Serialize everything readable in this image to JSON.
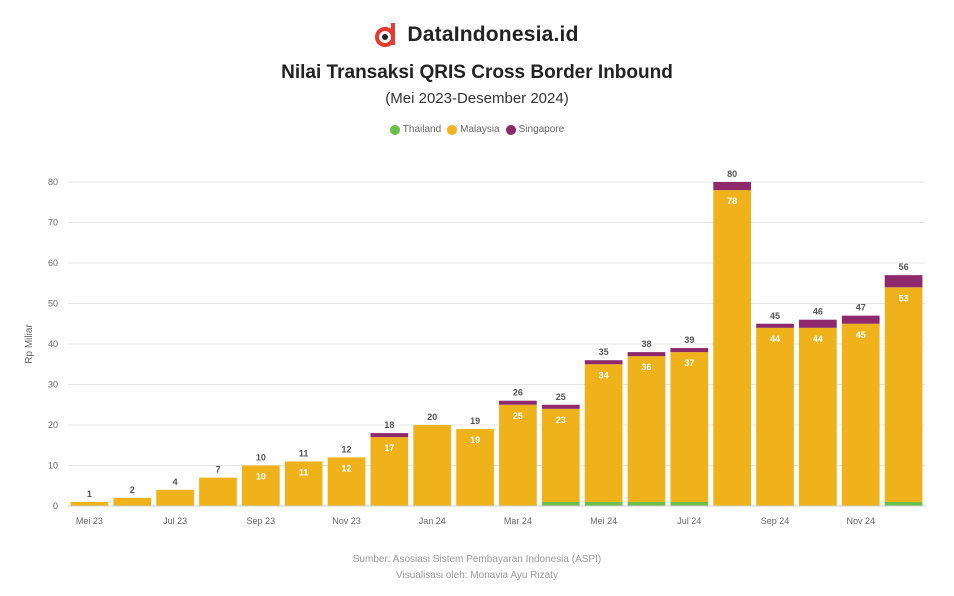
{
  "brand": {
    "name": "DataIndonesia.id",
    "logo": "dataindonesia-logo-icon",
    "logo_color": "#e53a2e"
  },
  "header": {
    "title": "Nilai Transaksi QRIS Cross Border Inbound",
    "subtitle": "(Mei 2023-Desember 2024)"
  },
  "legend": {
    "items": [
      {
        "label": "Thailand",
        "color": "#6abf4b"
      },
      {
        "label": "Malaysia",
        "color": "#efb21b"
      },
      {
        "label": "Singapore",
        "color": "#8e2a6b"
      }
    ]
  },
  "footer": {
    "source": "Sumber: Asosiasi Sistem Pembayaran Indonesia (ASPI)",
    "visual": "Visualisasi oleh: Monavia Ayu Rizaty"
  },
  "chart_data": {
    "type": "bar",
    "stacked": true,
    "ylabel": "Rp Miliar",
    "ylim": [
      0,
      80
    ],
    "yticks": [
      0,
      10,
      20,
      30,
      40,
      50,
      60,
      70,
      80
    ],
    "grid": true,
    "legend_position": "top-center",
    "categories": [
      "Mei 23",
      "Jun 23",
      "Jul 23",
      "Agu 23",
      "Sep 23",
      "Okt 23",
      "Nov 23",
      "Des 23",
      "Jan 24",
      "Feb 24",
      "Mar 24",
      "Apr 24",
      "Mei 24",
      "Jun 24",
      "Jul 24",
      "Agu 24",
      "Sep 24",
      "Okt 24",
      "Nov 24",
      "Des 24"
    ],
    "xtick_labels": [
      "Mei 23",
      "",
      "Jul 23",
      "",
      "Sep 23",
      "",
      "Nov 23",
      "",
      "Jan 24",
      "",
      "Mar 24",
      "",
      "Mei 24",
      "",
      "Jul 24",
      "",
      "Sep 24",
      "",
      "Nov 24",
      ""
    ],
    "series": [
      {
        "name": "Thailand",
        "color": "#6abf4b",
        "values": [
          0,
          0,
          0,
          0,
          0,
          0,
          0,
          0,
          0,
          0,
          0,
          1,
          1,
          1,
          1,
          0,
          0,
          0,
          0,
          1
        ]
      },
      {
        "name": "Malaysia",
        "color": "#efb21b",
        "values": [
          1,
          2,
          4,
          7,
          10,
          11,
          12,
          17,
          20,
          19,
          25,
          23,
          34,
          36,
          37,
          78,
          44,
          44,
          45,
          53
        ]
      },
      {
        "name": "Singapore",
        "color": "#8e2a6b",
        "values": [
          0,
          0,
          0,
          0,
          0,
          0,
          0,
          1,
          0,
          0,
          1,
          1,
          1,
          1,
          1,
          2,
          1,
          2,
          2,
          3
        ]
      }
    ],
    "inner_labels": [
      "",
      "",
      "",
      "",
      "10",
      "11",
      "12",
      "17",
      "",
      "19",
      "25",
      "23",
      "34",
      "36",
      "37",
      "78",
      "44",
      "44",
      "45",
      "53"
    ],
    "total_labels": [
      "1",
      "2",
      "4",
      "7",
      "10",
      "11",
      "12",
      "18",
      "20",
      "19",
      "26",
      "25",
      "35",
      "38",
      "39",
      "80",
      "45",
      "46",
      "47",
      "56"
    ]
  }
}
